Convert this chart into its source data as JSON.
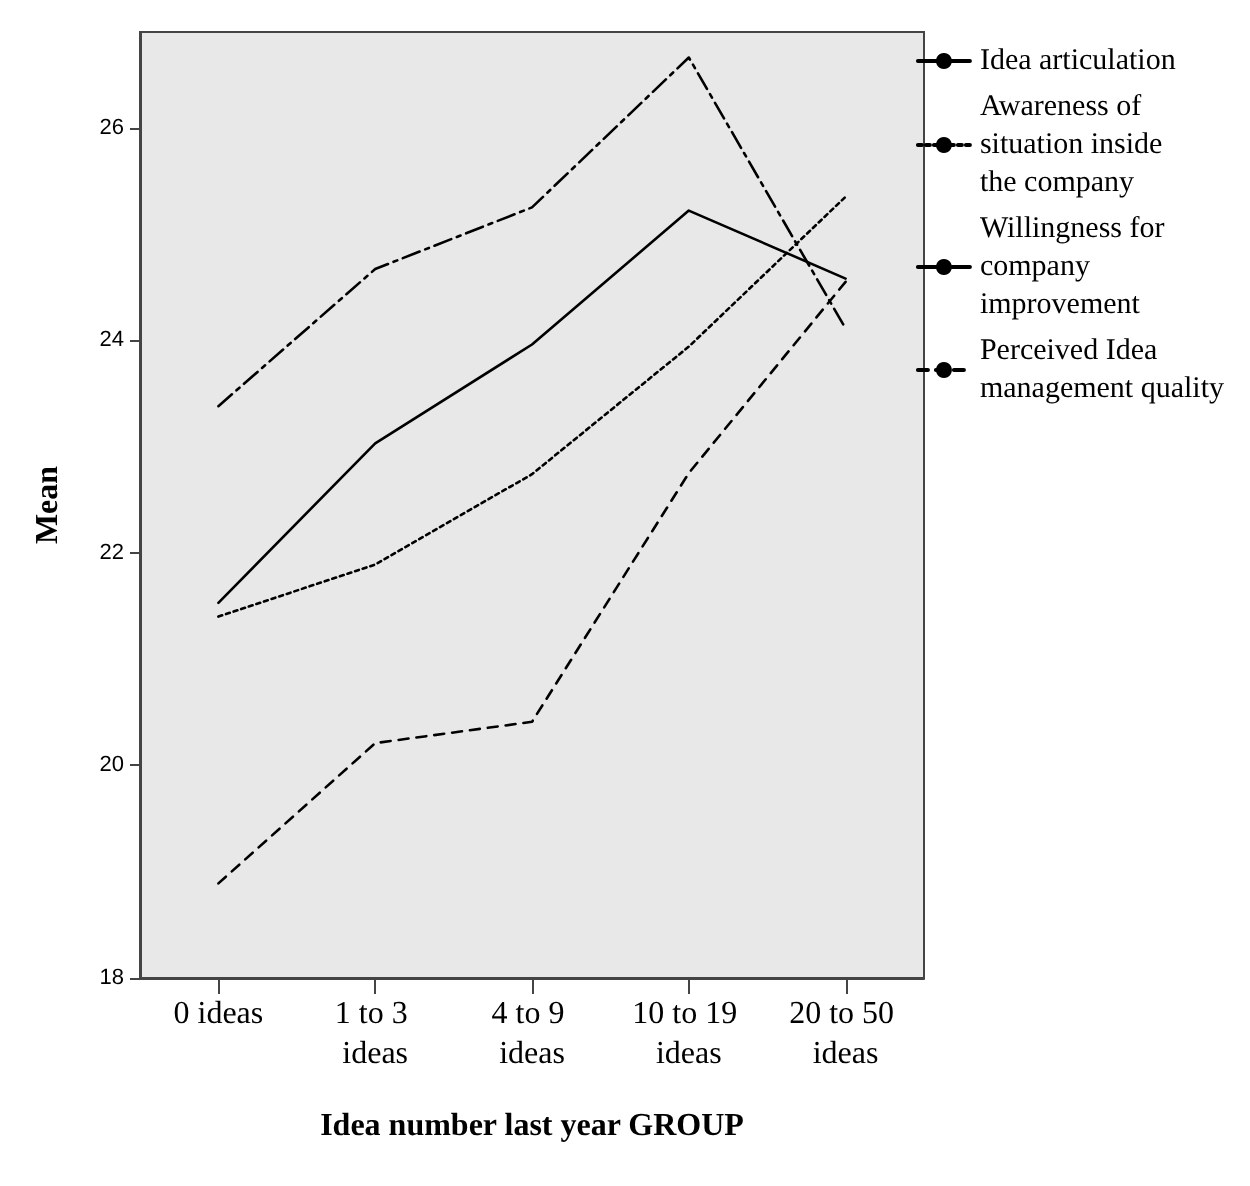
{
  "chart_data": {
    "type": "line",
    "xlabel": "Idea number last year GROUP",
    "ylabel": "Mean",
    "categories": [
      "0 ideas",
      "1 to 3 ideas",
      "4 to 9 ideas",
      "10 to 19 ideas",
      "20 to 50 ideas"
    ],
    "series": [
      {
        "name": "Idea articulation",
        "color": "#000000",
        "line_style": "solid",
        "values": [
          21.53,
          23.03,
          23.96,
          25.22,
          24.58
        ]
      },
      {
        "name": "Awareness of situation inside the company",
        "color": "#000000",
        "line_style": "dotted",
        "values": [
          21.4,
          21.89,
          22.74,
          23.94,
          25.35
        ]
      },
      {
        "name": "Willingness for company improvement",
        "color": "#000000",
        "line_style": "dashdot",
        "values": [
          23.38,
          24.67,
          25.25,
          26.66,
          24.11
        ]
      },
      {
        "name": "Perceived Idea management quality",
        "color": "#000000",
        "line_style": "dashed",
        "values": [
          18.89,
          20.21,
          20.41,
          22.75,
          24.55
        ]
      }
    ],
    "ylim": [
      18,
      26.9
    ],
    "yticks": [
      18,
      20,
      22,
      24,
      26
    ],
    "grid": false,
    "legend": "right",
    "marker": "none"
  }
}
